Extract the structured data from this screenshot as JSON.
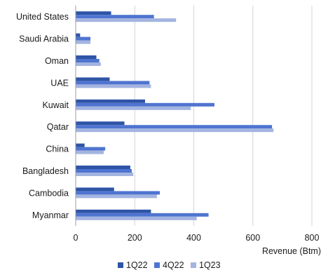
{
  "chart_data": {
    "type": "bar",
    "orientation": "horizontal",
    "categories": [
      "United States",
      "Saudi Arabia",
      "Oman",
      "UAE",
      "Kuwait",
      "Qatar",
      "China",
      "Bangladesh",
      "Cambodia",
      "Myanmar"
    ],
    "series": [
      {
        "name": "1Q22",
        "color": "#2e54a6",
        "values": [
          120,
          15,
          70,
          115,
          235,
          165,
          30,
          185,
          130,
          255
        ]
      },
      {
        "name": "4Q22",
        "color": "#4f74d0",
        "values": [
          265,
          50,
          80,
          250,
          470,
          665,
          100,
          190,
          285,
          450
        ]
      },
      {
        "name": "1Q23",
        "color": "#a3b4e0",
        "values": [
          340,
          50,
          85,
          255,
          390,
          670,
          95,
          195,
          275,
          410
        ]
      }
    ],
    "xlabel": "Revenue (Btm)",
    "ylabel": "",
    "xlim": [
      0,
      800
    ],
    "xticks": [
      0,
      200,
      400,
      600,
      800
    ],
    "grid": "vertical",
    "legend_position": "bottom"
  }
}
